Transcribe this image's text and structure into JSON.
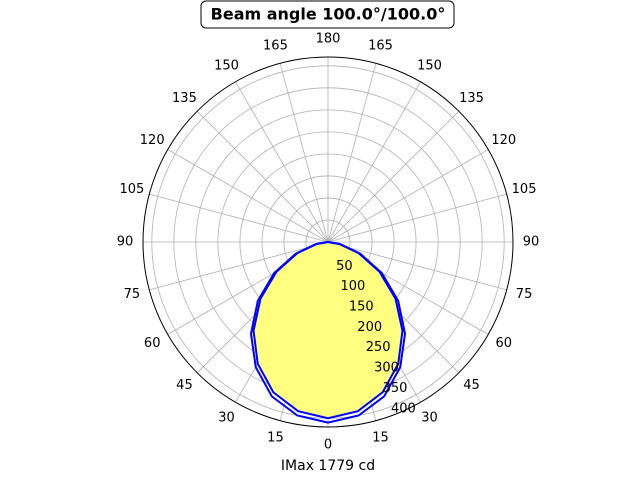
{
  "chart_data": {
    "type": "polar",
    "title": "Beam angle 100.0°/100.0°",
    "x_label": "IMax 1779 cd",
    "theta": [
      -90,
      -80,
      -70,
      -60,
      -50,
      -40,
      -30,
      -20,
      -10,
      0,
      10,
      20,
      30,
      40,
      50,
      60,
      70,
      80,
      90
    ],
    "series": [
      {
        "color": "#0000ff",
        "fill": "#ffff80",
        "values": [
          0,
          26,
          74,
          135,
          200,
          263,
          319,
          363,
          390,
          400,
          390,
          363,
          319,
          263,
          200,
          135,
          74,
          26,
          0
        ]
      },
      {
        "color": "#0000ff",
        "values": [
          0,
          28,
          78,
          141,
          208,
          272,
          328,
          373,
          400,
          410,
          400,
          373,
          328,
          272,
          208,
          141,
          78,
          28,
          0
        ]
      }
    ],
    "ylim": [
      0,
      420
    ],
    "yticks": [
      50,
      100,
      150,
      200,
      250,
      300,
      350,
      400
    ],
    "thetaticks": [
      0,
      15,
      30,
      45,
      60,
      75,
      90,
      105,
      120,
      135,
      150,
      165,
      180,
      {
        "value": -15,
        "label": "15"
      },
      {
        "value": -30,
        "label": "30"
      },
      {
        "value": -45,
        "label": "45"
      },
      {
        "value": -60,
        "label": "60"
      },
      {
        "value": -75,
        "label": "75"
      },
      {
        "value": -90,
        "label": "90"
      },
      {
        "value": -105,
        "label": "105"
      },
      {
        "value": -120,
        "label": "120"
      },
      {
        "value": -135,
        "label": "135"
      },
      {
        "value": -150,
        "label": "150"
      },
      {
        "value": -165,
        "label": "165"
      }
    ],
    "grid": true
  }
}
